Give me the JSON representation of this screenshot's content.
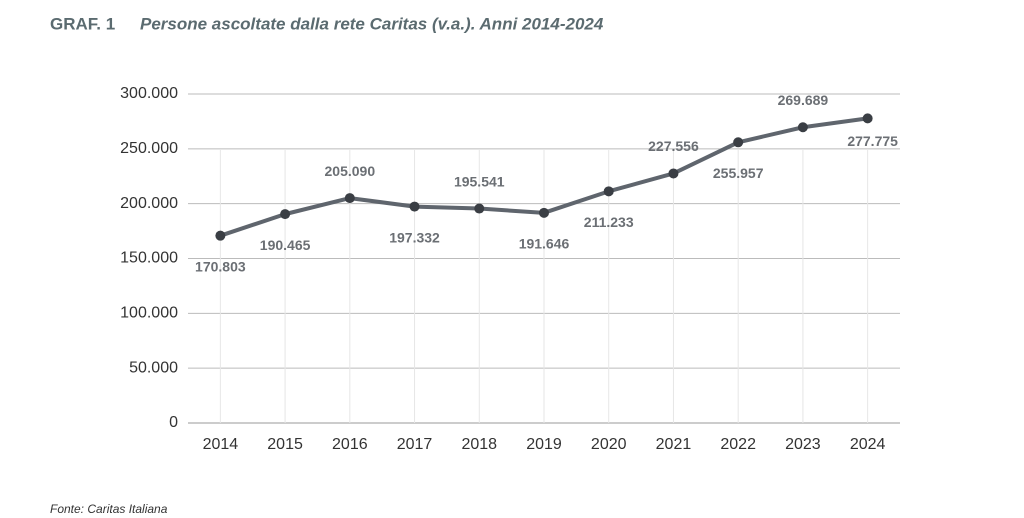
{
  "chart_data": {
    "type": "line",
    "label": "GRAF. 1",
    "title": "Persone ascoltate dalla rete Caritas (v.a.). Anni 2014-2024",
    "source": "Fonte: Caritas Italiana",
    "categories": [
      "2014",
      "2015",
      "2016",
      "2017",
      "2018",
      "2019",
      "2020",
      "2021",
      "2022",
      "2023",
      "2024"
    ],
    "values": [
      170803,
      190465,
      205090,
      197332,
      195541,
      191646,
      211233,
      227556,
      255957,
      269689,
      277775
    ],
    "value_labels": [
      "170.803",
      "190.465",
      "205.090",
      "197.332",
      "195.541",
      "191.646",
      "211.233",
      "227.556",
      "255.957",
      "269.689",
      "277.775"
    ],
    "color": "#5f656d",
    "ylim": [
      0,
      300000
    ],
    "yticks": [
      0,
      {
        "value": 50000,
        "label": "50.000"
      },
      {
        "value": 100000,
        "label": "100.000"
      },
      {
        "value": 150000,
        "label": "150.000"
      },
      {
        "value": 200000,
        "label": "200.000"
      },
      {
        "value": 250000,
        "label": "250.000"
      },
      {
        "value": 300000,
        "label": "300.000"
      }
    ],
    "grid": true
  }
}
